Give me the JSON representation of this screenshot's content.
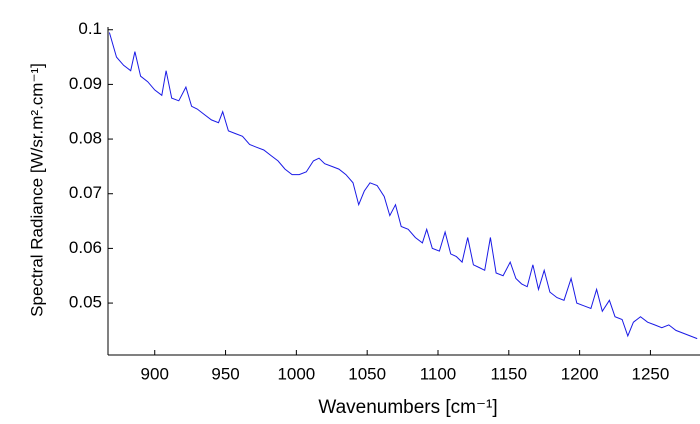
{
  "chart_data": {
    "type": "line",
    "xlabel": "Wavenumbers [cm⁻¹]",
    "ylabel": "Spectral Radiance [W/sr.m².cm⁻¹]",
    "color": "#1a1ae6",
    "x": [
      868,
      873,
      878,
      883,
      886,
      890,
      895,
      900,
      905,
      908,
      912,
      917,
      922,
      926,
      930,
      935,
      940,
      945,
      948,
      952,
      957,
      962,
      967,
      972,
      977,
      982,
      987,
      992,
      997,
      1002,
      1007,
      1012,
      1016,
      1020,
      1025,
      1030,
      1035,
      1040,
      1044,
      1048,
      1052,
      1057,
      1062,
      1066,
      1070,
      1074,
      1079,
      1084,
      1089,
      1092,
      1096,
      1101,
      1105,
      1109,
      1113,
      1117,
      1121,
      1125,
      1129,
      1133,
      1137,
      1141,
      1146,
      1151,
      1155,
      1159,
      1163,
      1167,
      1171,
      1175,
      1179,
      1184,
      1189,
      1194,
      1198,
      1203,
      1208,
      1212,
      1216,
      1221,
      1225,
      1230,
      1234,
      1238,
      1243,
      1248,
      1253,
      1258,
      1263,
      1268,
      1273,
      1278,
      1283
    ],
    "values": [
      0.0995,
      0.095,
      0.0935,
      0.0925,
      0.096,
      0.0915,
      0.0905,
      0.089,
      0.088,
      0.0925,
      0.0875,
      0.087,
      0.0895,
      0.086,
      0.0855,
      0.0845,
      0.0835,
      0.083,
      0.085,
      0.0815,
      0.081,
      0.0805,
      0.079,
      0.0785,
      0.078,
      0.077,
      0.076,
      0.0745,
      0.0735,
      0.0735,
      0.074,
      0.076,
      0.0765,
      0.0755,
      0.075,
      0.0745,
      0.0735,
      0.072,
      0.068,
      0.0705,
      0.072,
      0.0715,
      0.0695,
      0.066,
      0.068,
      0.064,
      0.0635,
      0.062,
      0.061,
      0.0635,
      0.06,
      0.0595,
      0.063,
      0.059,
      0.0585,
      0.0575,
      0.062,
      0.057,
      0.0565,
      0.056,
      0.062,
      0.0555,
      0.055,
      0.0575,
      0.0545,
      0.0535,
      0.053,
      0.057,
      0.0525,
      0.056,
      0.052,
      0.051,
      0.0505,
      0.0545,
      0.05,
      0.0495,
      0.049,
      0.0525,
      0.0485,
      0.0505,
      0.0475,
      0.047,
      0.044,
      0.0465,
      0.0475,
      0.0465,
      0.046,
      0.0455,
      0.046,
      0.045,
      0.0445,
      0.044,
      0.0435
    ],
    "xlim": [
      867,
      1285
    ],
    "ylim": [
      0.0405,
      0.1005
    ],
    "xticks": [
      900,
      950,
      1000,
      1050,
      1100,
      1150,
      1200,
      1250
    ],
    "yticks": [
      0.05,
      0.06,
      0.07,
      0.08,
      0.09,
      0.1
    ]
  }
}
